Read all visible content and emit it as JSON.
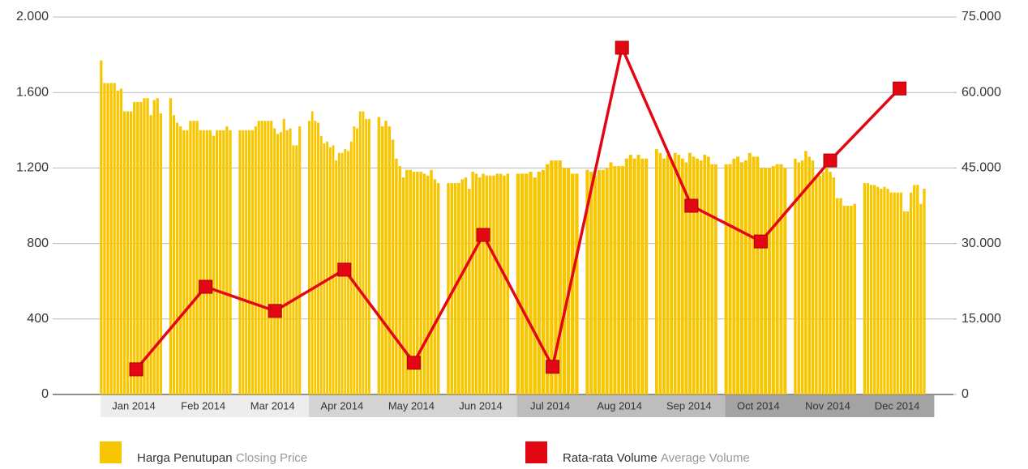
{
  "chart_data": {
    "type": "bar-line",
    "categories": [
      "Jan 2014",
      "Feb 2014",
      "Mar 2014",
      "Apr 2014",
      "May 2014",
      "Jun 2014",
      "Jul 2014",
      "Aug 2014",
      "Sep 2014",
      "Oct 2014",
      "Nov 2014",
      "Dec 2014"
    ],
    "band_colors": [
      "#ededed",
      "#ededed",
      "#ededed",
      "#d4d4d4",
      "#d4d4d4",
      "#d4d4d4",
      "#bdbdbd",
      "#bdbdbd",
      "#bdbdbd",
      "#a3a3a3",
      "#a3a3a3",
      "#a3a3a3"
    ],
    "series": [
      {
        "name": "Harga Penutupan",
        "subname": "Closing Price",
        "color": "#f8c600",
        "type": "bar",
        "axis": "y",
        "values": [
          [
            1770,
            1650,
            1650,
            1650,
            1650,
            1610,
            1620,
            1500,
            1500,
            1500,
            1550,
            1550,
            1550,
            1570,
            1570,
            1480,
            1560,
            1570,
            1490
          ],
          [
            1570,
            1480,
            1440,
            1420,
            1400,
            1400,
            1450,
            1450,
            1450,
            1400,
            1400,
            1400,
            1400,
            1370,
            1400,
            1400,
            1400,
            1420,
            1400
          ],
          [
            1400,
            1400,
            1400,
            1400,
            1400,
            1420,
            1450,
            1450,
            1450,
            1450,
            1450,
            1410,
            1380,
            1390,
            1460,
            1400,
            1410,
            1320,
            1320,
            1420
          ],
          [
            1450,
            1500,
            1450,
            1440,
            1370,
            1330,
            1340,
            1310,
            1320,
            1240,
            1280,
            1280,
            1300,
            1290,
            1340,
            1420,
            1410,
            1500,
            1500,
            1460,
            1460
          ],
          [
            1470,
            1420,
            1450,
            1420,
            1350,
            1250,
            1210,
            1150,
            1190,
            1190,
            1180,
            1180,
            1180,
            1170,
            1160,
            1190,
            1140,
            1120
          ],
          [
            1120,
            1120,
            1120,
            1120,
            1140,
            1150,
            1090,
            1180,
            1170,
            1150,
            1170,
            1160,
            1160,
            1160,
            1170,
            1170,
            1160,
            1170
          ],
          [
            1170,
            1170,
            1170,
            1180,
            1150,
            1180,
            1190,
            1220,
            1240,
            1240,
            1240,
            1200,
            1200,
            1170,
            1170
          ],
          [
            1190,
            1180,
            1160,
            1190,
            1190,
            1200,
            1230,
            1210,
            1210,
            1210,
            1250,
            1270,
            1250,
            1270,
            1250,
            1250
          ],
          [
            1300,
            1280,
            1250,
            1270,
            1240,
            1280,
            1270,
            1250,
            1230,
            1280,
            1260,
            1250,
            1240,
            1270,
            1260,
            1220,
            1220
          ],
          [
            1220,
            1220,
            1250,
            1260,
            1230,
            1240,
            1280,
            1260,
            1260,
            1200,
            1200,
            1200,
            1210,
            1220,
            1220,
            1200
          ],
          [
            1250,
            1230,
            1240,
            1290,
            1260,
            1240,
            1160,
            1160,
            1180,
            1200,
            1180,
            1150,
            1040,
            1040,
            1000,
            1000,
            1000,
            1010
          ],
          [
            1120,
            1120,
            1110,
            1110,
            1100,
            1090,
            1100,
            1090,
            1070,
            1070,
            1070,
            1070,
            970,
            970,
            1070,
            1110,
            1110,
            1010,
            1090
          ]
        ]
      },
      {
        "name": "Rata-rata Volume",
        "subname": "Average Volume",
        "color": "#e30613",
        "type": "line",
        "axis": "y2",
        "values": [
          5000,
          21400,
          16600,
          24800,
          6300,
          31700,
          5500,
          68900,
          37500,
          30400,
          46500,
          60800
        ]
      }
    ],
    "ylim": [
      0,
      2000
    ],
    "yticks": [
      0,
      400,
      800,
      {
        "value": 1200,
        "label": "1.200"
      },
      {
        "value": 1600,
        "label": "1.600"
      },
      {
        "value": 2000,
        "label": "2.000"
      }
    ],
    "y2lim": [
      0,
      75000
    ],
    "y2ticks": [
      0,
      {
        "value": 15000,
        "label": "15.000"
      },
      {
        "value": 30000,
        "label": "30.000"
      },
      {
        "value": 45000,
        "label": "45.000"
      },
      {
        "value": 60000,
        "label": "60.000"
      },
      {
        "value": 75000,
        "label": "75.000"
      }
    ],
    "grid": true
  }
}
